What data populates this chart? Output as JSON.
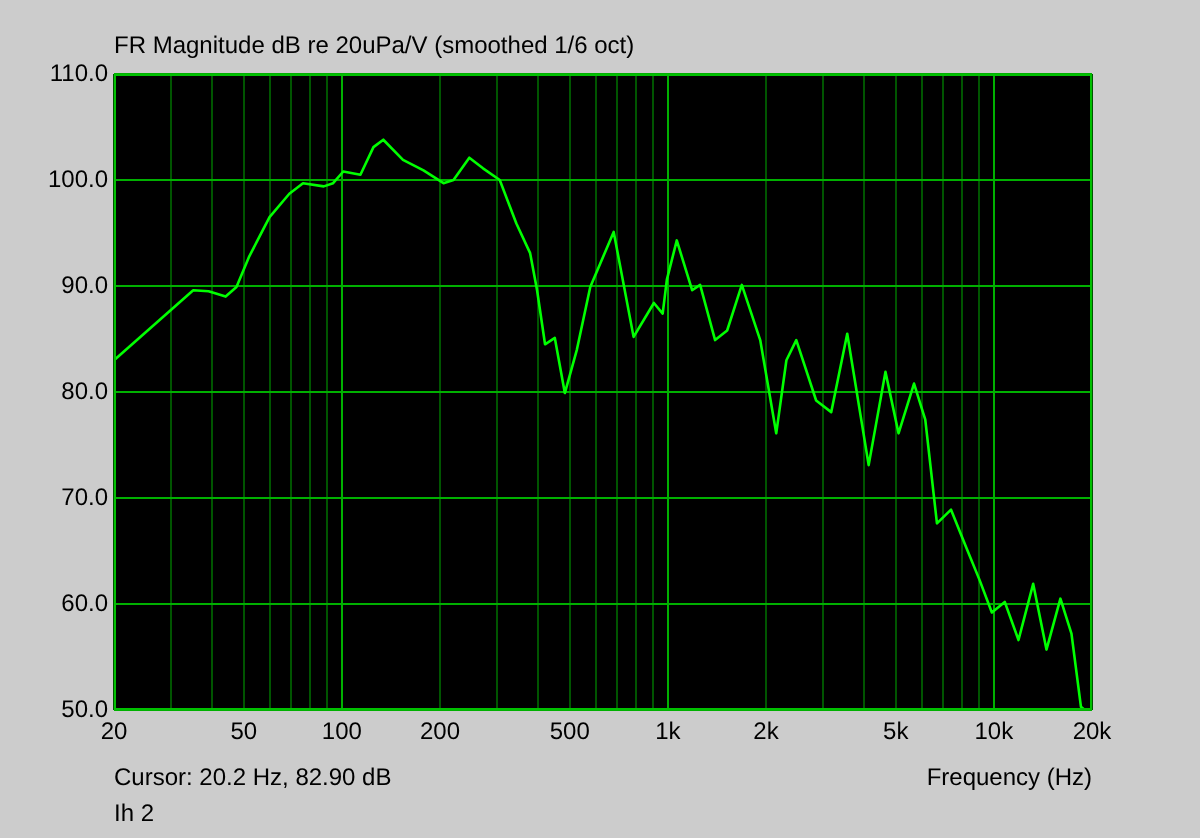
{
  "chart_data": {
    "type": "line",
    "title": "FR Magnitude dB re 20uPa/V (smoothed 1/6 oct)",
    "xlabel": "Frequency (Hz)",
    "annotations": [
      "Cursor: 20.2 Hz, 82.90 dB",
      "Ih 2"
    ],
    "log": "x",
    "grid": true,
    "legend": false,
    "marker": "none",
    "line_style": "solid",
    "xlim": [
      20,
      20000
    ],
    "ylim": [
      50,
      110
    ],
    "xticks": [
      20,
      {
        "value": 30,
        "label": null
      },
      {
        "value": 40,
        "label": null
      },
      50,
      {
        "value": 60,
        "label": null
      },
      {
        "value": 70,
        "label": null
      },
      {
        "value": 80,
        "label": null
      },
      {
        "value": 90,
        "label": null
      },
      100,
      200,
      {
        "value": 300,
        "label": null
      },
      {
        "value": 400,
        "label": null
      },
      500,
      {
        "value": 600,
        "label": null
      },
      {
        "value": 700,
        "label": null
      },
      {
        "value": 800,
        "label": null
      },
      {
        "value": 900,
        "label": null
      },
      {
        "value": 1000,
        "label": "1k"
      },
      {
        "value": 2000,
        "label": "2k"
      },
      {
        "value": 3000,
        "label": null
      },
      {
        "value": 4000,
        "label": null
      },
      {
        "value": 5000,
        "label": "5k"
      },
      {
        "value": 6000,
        "label": null
      },
      {
        "value": 7000,
        "label": null
      },
      {
        "value": 8000,
        "label": null
      },
      {
        "value": 9000,
        "label": null
      },
      {
        "value": 10000,
        "label": "10k"
      },
      {
        "value": 20000,
        "label": "20k"
      }
    ],
    "yticks": [
      {
        "value": 50,
        "label": "50.0"
      },
      {
        "value": 60,
        "label": "60.0"
      },
      {
        "value": 70,
        "label": "70.0"
      },
      {
        "value": 80,
        "label": "80.0"
      },
      {
        "value": 90,
        "label": "90.0"
      },
      {
        "value": 100,
        "label": "100.0"
      },
      {
        "value": 110,
        "label": "110.0"
      }
    ],
    "series": [
      {
        "color": "#00ff00",
        "x": [
          20,
          35,
          39,
          44,
          47.5,
          52,
          60,
          69,
          76,
          88,
          94,
          101,
          114,
          125,
          134,
          154,
          178,
          205,
          220,
          246,
          271,
          305,
          343,
          378,
          397,
          420,
          450,
          483,
          526,
          578,
          682,
          785,
          906,
          964,
          993,
          1065,
          1187,
          1256,
          1396,
          1520,
          1686,
          1920,
          2150,
          2310,
          2477,
          2850,
          3170,
          3550,
          4130,
          4650,
          5100,
          5690,
          6160,
          6690,
          7390,
          8210,
          9030,
          9860,
          10800,
          11900,
          13200,
          14500,
          16000,
          17300,
          18500,
          19000
        ],
        "values": [
          83,
          89.6,
          89.5,
          89,
          89.9,
          92.8,
          96.5,
          98.7,
          99.7,
          99.4,
          99.7,
          100.8,
          100.5,
          103.1,
          103.8,
          101.9,
          100.9,
          99.7,
          100,
          102.1,
          101.1,
          100,
          95.9,
          93.1,
          89.6,
          84.5,
          85.1,
          79.9,
          84,
          89.9,
          95.1,
          85.2,
          88.4,
          87.4,
          90.6,
          94.3,
          89.6,
          90.1,
          84.9,
          85.8,
          90.1,
          84.9,
          76.1,
          83,
          84.9,
          79.2,
          78.1,
          85.5,
          73.1,
          81.9,
          76.1,
          80.8,
          77.4,
          67.6,
          68.9,
          65.4,
          62.3,
          59.2,
          60.2,
          56.6,
          61.9,
          55.7,
          60.5,
          57.2,
          50.3,
          50
        ]
      }
    ]
  }
}
